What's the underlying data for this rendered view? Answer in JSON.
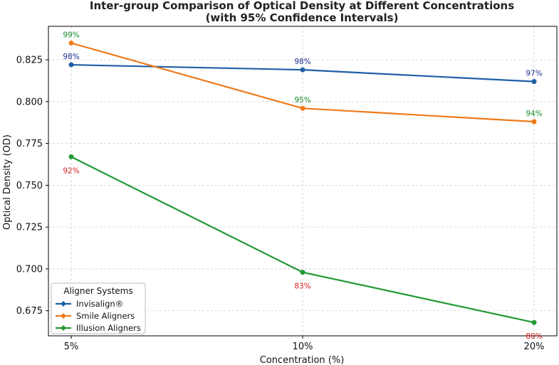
{
  "chart_data": {
    "type": "line",
    "title": "Inter-group Comparison of Optical Density at Different Concentrations",
    "subtitle": "(with 95% Confidence Intervals)",
    "xlabel": "Concentration (%)",
    "ylabel": "Optical Density (OD)",
    "categories": [
      "5%",
      "10%",
      "20%"
    ],
    "ylim": [
      0.66,
      0.845
    ],
    "yticks": [
      "0.675",
      "0.700",
      "0.725",
      "0.750",
      "0.775",
      "0.800",
      "0.825"
    ],
    "grid": true,
    "legend": {
      "title": "Aligner Systems",
      "placement": "lower-left"
    },
    "series": [
      {
        "name": "Invisalign®",
        "color": "#1f5fa6",
        "label_color": "#1f2f8f",
        "values": [
          0.822,
          0.819,
          0.812
        ],
        "labels": [
          "98%",
          "98%",
          "97%"
        ],
        "label_side": "above"
      },
      {
        "name": "Smile Aligners",
        "color": "#f07a1a",
        "label_color": "#1a8a2a",
        "values": [
          0.835,
          0.796,
          0.788
        ],
        "labels": [
          "99%",
          "95%",
          "94%"
        ],
        "label_side": "above"
      },
      {
        "name": "Illusion Aligners",
        "color": "#229933",
        "label_color": "#d62020",
        "values": [
          0.767,
          0.698,
          0.668
        ],
        "labels": [
          "92%",
          "83%",
          "80%"
        ],
        "label_side": "below"
      }
    ]
  }
}
